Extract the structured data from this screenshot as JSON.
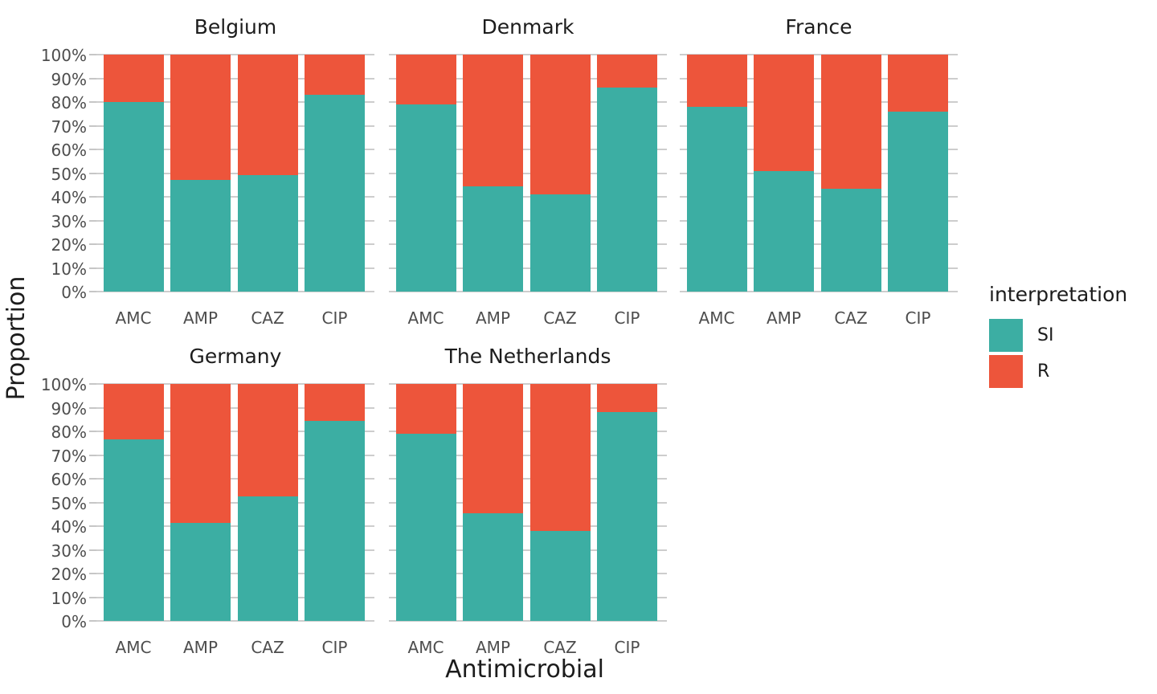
{
  "figure": {
    "y_axis_title": "Proportion",
    "x_axis_title": "Antimicrobial"
  },
  "legend": {
    "title": "interpretation",
    "items": [
      {
        "label": "SI",
        "color": "#3CAEA3"
      },
      {
        "label": "R",
        "color": "#ED553B"
      }
    ]
  },
  "chart_data": {
    "type": "bar",
    "stacked": true,
    "orientation": "vertical",
    "units": "percent",
    "categories": [
      "AMC",
      "AMP",
      "CAZ",
      "CIP"
    ],
    "xlabel": "Antimicrobial",
    "ylabel": "Proportion",
    "ylim": [
      0,
      100
    ],
    "y_ticks": [
      0,
      10,
      20,
      30,
      40,
      50,
      60,
      70,
      80,
      90,
      100
    ],
    "y_tick_labels": [
      "0%",
      "10%",
      "20%",
      "30%",
      "40%",
      "50%",
      "60%",
      "70%",
      "80%",
      "90%",
      "100%"
    ],
    "grid": "horizontal",
    "legend_position": "right",
    "legend_title": "interpretation",
    "series_names": [
      "SI",
      "R"
    ],
    "series_colors": {
      "SI": "#3CAEA3",
      "R": "#ED553B"
    },
    "facet_layout": {
      "rows": 2,
      "cols": 3
    },
    "facets": [
      {
        "title": "Belgium",
        "series": [
          {
            "name": "SI",
            "values": [
              80,
              47,
              49,
              83
            ]
          },
          {
            "name": "R",
            "values": [
              20,
              53,
              51,
              17
            ]
          }
        ]
      },
      {
        "title": "Denmark",
        "series": [
          {
            "name": "SI",
            "values": [
              79,
              44.5,
              41,
              86
            ]
          },
          {
            "name": "R",
            "values": [
              21,
              55.5,
              59,
              14
            ]
          }
        ]
      },
      {
        "title": "France",
        "series": [
          {
            "name": "SI",
            "values": [
              78,
              51,
              43.5,
              76
            ]
          },
          {
            "name": "R",
            "values": [
              22,
              49,
              56.5,
              24
            ]
          }
        ]
      },
      {
        "title": "Germany",
        "series": [
          {
            "name": "SI",
            "values": [
              76.5,
              41.5,
              52.5,
              84.5
            ]
          },
          {
            "name": "R",
            "values": [
              23.5,
              58.5,
              47.5,
              15.5
            ]
          }
        ]
      },
      {
        "title": "The Netherlands",
        "series": [
          {
            "name": "SI",
            "values": [
              79,
              45.5,
              38,
              88
            ]
          },
          {
            "name": "R",
            "values": [
              21,
              54.5,
              62,
              12
            ]
          }
        ]
      }
    ]
  }
}
